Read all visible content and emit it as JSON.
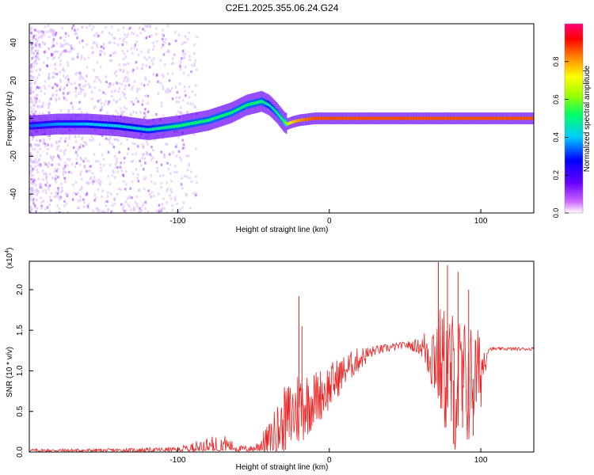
{
  "figure_title": "C2E1.2025.355.06.24.G24",
  "chart_data": [
    {
      "type": "heatmap",
      "name": "spectrogram",
      "xlabel": "Height of straight line (km)",
      "ylabel": "Frequency (Hz)",
      "xlim": [
        -198,
        135
      ],
      "ylim": [
        -50,
        50
      ],
      "x_ticks": [
        -100,
        0,
        100
      ],
      "x_tick_labels": [
        "-100",
        "0",
        "100"
      ],
      "y_ticks": [
        -40,
        -20,
        0,
        20,
        40
      ],
      "y_tick_labels": [
        "-40",
        "-20",
        "0",
        "20",
        "40"
      ],
      "colorbar": {
        "label": "Normalized spectral amplitude",
        "range": [
          0,
          1
        ],
        "ticks": [
          0.0,
          0.2,
          0.4,
          0.6,
          0.8
        ],
        "tick_labels": [
          "0.0",
          "0.2",
          "0.4",
          "0.6",
          "0.8"
        ],
        "colormap": [
          "#ffffff",
          "#cc66ff",
          "#6600ff",
          "#0000ff",
          "#00ccff",
          "#00ff66",
          "#99ff00",
          "#ffff00",
          "#ff8800",
          "#ff0000",
          "#ff0077"
        ]
      },
      "ridge": {
        "x": [
          -198,
          -180,
          -160,
          -140,
          -120,
          -100,
          -80,
          -65,
          -55,
          -45,
          -40,
          -35,
          -30,
          -28,
          -25,
          -20,
          -10,
          0,
          20,
          60,
          100,
          135
        ],
        "freq": [
          -4,
          -3,
          -3,
          -4,
          -6,
          -4,
          -1,
          3,
          7,
          9,
          7,
          3,
          -2,
          -3,
          -2,
          -1,
          0,
          0,
          0,
          0,
          0,
          0
        ],
        "amplitude": [
          0.35,
          0.38,
          0.4,
          0.42,
          0.45,
          0.5,
          0.5,
          0.5,
          0.5,
          0.5,
          0.45,
          0.5,
          0.55,
          0.65,
          0.75,
          0.8,
          0.85,
          0.85,
          0.85,
          0.85,
          0.85,
          0.85
        ]
      }
    },
    {
      "type": "line",
      "name": "snr",
      "xlabel": "Height of straight line (km)",
      "ylabel": "SNR (10 * v/v)",
      "y_multiplier_label": "(x10",
      "y_multiplier_exp": "4",
      "xlim": [
        -198,
        135
      ],
      "ylim": [
        0,
        2.35
      ],
      "x_ticks": [
        -100,
        0,
        100
      ],
      "x_tick_labels": [
        "-100",
        "0",
        "100"
      ],
      "y_ticks": [
        0.0,
        0.5,
        1.0,
        1.5,
        2.0
      ],
      "y_tick_labels": [
        "0.0",
        "0.5",
        "1.0",
        "1.5",
        "2.0"
      ],
      "color": "#ee2222",
      "envelope": {
        "x": [
          -198,
          -150,
          -100,
          -85,
          -70,
          -60,
          -50,
          -40,
          -30,
          -20,
          -10,
          0,
          10,
          20,
          30,
          50,
          60,
          70,
          80,
          90,
          100,
          105,
          120,
          135
        ],
        "base": [
          0.02,
          0.02,
          0.03,
          0.06,
          0.1,
          0.04,
          0.04,
          0.15,
          0.35,
          0.55,
          0.65,
          0.8,
          1.0,
          1.15,
          1.25,
          1.32,
          1.3,
          1.2,
          0.9,
          0.8,
          1.0,
          1.27,
          1.27,
          1.27
        ],
        "amp": [
          0.02,
          0.02,
          0.03,
          0.1,
          0.12,
          0.04,
          0.04,
          0.2,
          0.45,
          0.5,
          0.35,
          0.3,
          0.2,
          0.15,
          0.06,
          0.04,
          0.1,
          0.6,
          0.9,
          0.85,
          0.5,
          0.02,
          0.02,
          0.02
        ]
      },
      "peaks": [
        {
          "x": -20,
          "y": 1.92
        },
        {
          "x": -18,
          "y": 1.55
        },
        {
          "x": 72,
          "y": 2.34
        },
        {
          "x": 78,
          "y": 2.3
        },
        {
          "x": 85,
          "y": 2.22
        },
        {
          "x": 92,
          "y": 2.0
        },
        {
          "x": 82,
          "y": 0.1
        },
        {
          "x": 88,
          "y": 0.3
        },
        {
          "x": 95,
          "y": 0.2
        }
      ]
    }
  ]
}
